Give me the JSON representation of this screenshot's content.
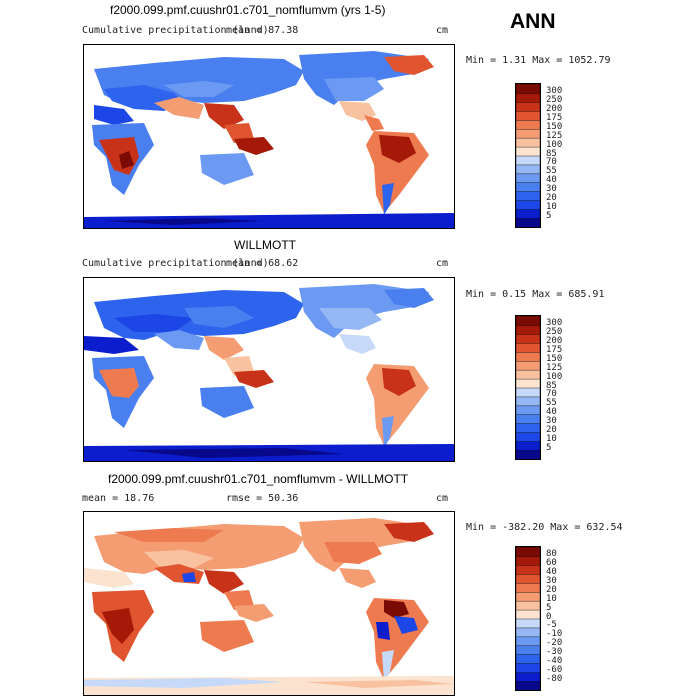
{
  "season": "ANN",
  "panels": [
    {
      "title": "f2000.099.pmf.cuushr01.c701_nomflumvm (yrs 1-5)",
      "subtitle": "Cumulative precipitation (land)",
      "stat_left": "mean =   87.38",
      "units": "cm",
      "minmax": "Min =    1.31 Max = 1052.79",
      "colorbar_levels": [
        "300",
        "250",
        "200",
        "175",
        "150",
        "125",
        "100",
        "85",
        "70",
        "55",
        "40",
        "30",
        "20",
        "10",
        "5"
      ]
    },
    {
      "title": "WILLMOTT",
      "subtitle": "Cumulative precipitation (land)",
      "stat_left": "mean =   68.62",
      "units": "cm",
      "minmax": "Min =    0.15 Max =  685.91",
      "colorbar_levels": [
        "300",
        "250",
        "200",
        "175",
        "150",
        "125",
        "100",
        "85",
        "70",
        "55",
        "40",
        "30",
        "20",
        "10",
        "5"
      ]
    },
    {
      "title": "f2000.099.pmf.cuushr01.c701_nomflumvm - WILLMOTT",
      "stat_left": "mean =   18.76",
      "stat_mid": "rmse =   50.36",
      "units": "cm",
      "minmax": "Min = -382.20 Max =  632.54",
      "colorbar_levels": [
        "80",
        "60",
        "40",
        "30",
        "20",
        "10",
        "5",
        "0",
        "-5",
        "-10",
        "-20",
        "-30",
        "-40",
        "-60",
        "-80"
      ]
    }
  ],
  "chart_data": [
    {
      "type": "heatmap",
      "title": "f2000.099.pmf.cuushr01.c701_nomflumvm (yrs 1-5)",
      "variable": "Cumulative precipitation (land)",
      "units": "cm",
      "season": "ANN",
      "mean": 87.38,
      "min": 1.31,
      "max": 1052.79,
      "contour_levels": [
        5,
        10,
        20,
        30,
        40,
        55,
        70,
        85,
        100,
        125,
        150,
        175,
        200,
        250,
        300
      ],
      "colors": [
        "#08088a",
        "#0b1dcc",
        "#1c47e6",
        "#2e63ee",
        "#4a7ff0",
        "#6c9af2",
        "#95b8f5",
        "#c7d9f8",
        "#fbe3cf",
        "#f8c2a0",
        "#f49d73",
        "#ee7a50",
        "#e0552f",
        "#c73218",
        "#a41908",
        "#7a0b04"
      ]
    },
    {
      "type": "heatmap",
      "title": "WILLMOTT",
      "variable": "Cumulative precipitation (land)",
      "units": "cm",
      "mean": 68.62,
      "min": 0.15,
      "max": 685.91,
      "contour_levels": [
        5,
        10,
        20,
        30,
        40,
        55,
        70,
        85,
        100,
        125,
        150,
        175,
        200,
        250,
        300
      ],
      "colors": [
        "#08088a",
        "#0b1dcc",
        "#1c47e6",
        "#2e63ee",
        "#4a7ff0",
        "#6c9af2",
        "#95b8f5",
        "#c7d9f8",
        "#fbe3cf",
        "#f8c2a0",
        "#f49d73",
        "#ee7a50",
        "#e0552f",
        "#c73218",
        "#a41908",
        "#7a0b04"
      ]
    },
    {
      "type": "heatmap",
      "title": "f2000.099.pmf.cuushr01.c701_nomflumvm - WILLMOTT",
      "units": "cm",
      "mean": 18.76,
      "rmse": 50.36,
      "min": -382.2,
      "max": 632.54,
      "contour_levels": [
        -80,
        -60,
        -40,
        -30,
        -20,
        -10,
        -5,
        0,
        5,
        10,
        20,
        30,
        40,
        60,
        80
      ],
      "colors": [
        "#08088a",
        "#0b1dcc",
        "#1c47e6",
        "#2e63ee",
        "#4a7ff0",
        "#6c9af2",
        "#95b8f5",
        "#c7d9f8",
        "#fbe3cf",
        "#f8c2a0",
        "#f49d73",
        "#ee7a50",
        "#e0552f",
        "#c73218",
        "#a41908",
        "#7a0b04"
      ]
    }
  ]
}
